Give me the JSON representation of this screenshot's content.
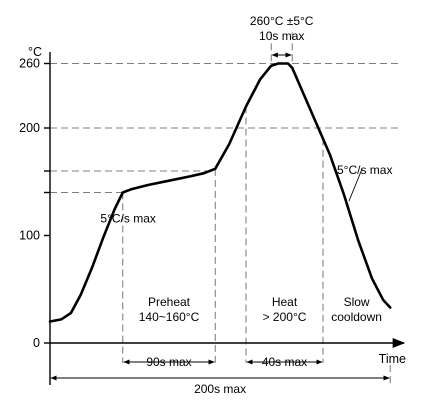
{
  "chart_data": {
    "type": "line",
    "title": "",
    "xlabel": "Time",
    "ylabel": "°C",
    "yticks": [
      "0",
      "100",
      "200",
      "260"
    ],
    "ylim": [
      0,
      280
    ],
    "xlim": [
      0,
      250
    ],
    "series": [
      {
        "points": [
          [
            0,
            20
          ],
          [
            8,
            22
          ],
          [
            15,
            28
          ],
          [
            22,
            45
          ],
          [
            30,
            70
          ],
          [
            38,
            98
          ],
          [
            46,
            124
          ],
          [
            52,
            140
          ],
          [
            58,
            143
          ],
          [
            70,
            147
          ],
          [
            85,
            151
          ],
          [
            100,
            155
          ],
          [
            110,
            158
          ],
          [
            118,
            162
          ],
          [
            128,
            185
          ],
          [
            140,
            220
          ],
          [
            150,
            245
          ],
          [
            158,
            258
          ],
          [
            163,
            260
          ],
          [
            170,
            260
          ],
          [
            173,
            256
          ],
          [
            180,
            235
          ],
          [
            190,
            205
          ],
          [
            200,
            175
          ],
          [
            210,
            138
          ],
          [
            220,
            96
          ],
          [
            230,
            60
          ],
          [
            238,
            40
          ],
          [
            243,
            33
          ]
        ]
      }
    ],
    "reference_levels": [
      260,
      200,
      160,
      140
    ],
    "phases": [
      {
        "name_lines": [
          "Preheat",
          "140~160°C"
        ],
        "start": 52,
        "end": 118
      },
      {
        "name_lines": [
          "Heat",
          "> 200°C"
        ],
        "start": 140,
        "end": 195
      },
      {
        "name_lines": [
          "Slow",
          "cooldown"
        ],
        "start": 195,
        "end": 243
      }
    ],
    "durations": [
      {
        "label": "90s max",
        "start": 52,
        "end": 118,
        "row": 1
      },
      {
        "label": "40s max",
        "start": 140,
        "end": 195,
        "row": 1
      },
      {
        "label": "200s max",
        "start": 0,
        "end": 243,
        "row": 2
      }
    ],
    "peak": {
      "lines": [
        "260°C ±5°C",
        "10s max"
      ],
      "start": 158,
      "end": 173
    },
    "annotations": [
      {
        "text": "5°C/s max",
        "x": 36,
        "y": 112
      },
      {
        "text": "5°C/s max",
        "x": 205,
        "y": 157
      }
    ]
  }
}
